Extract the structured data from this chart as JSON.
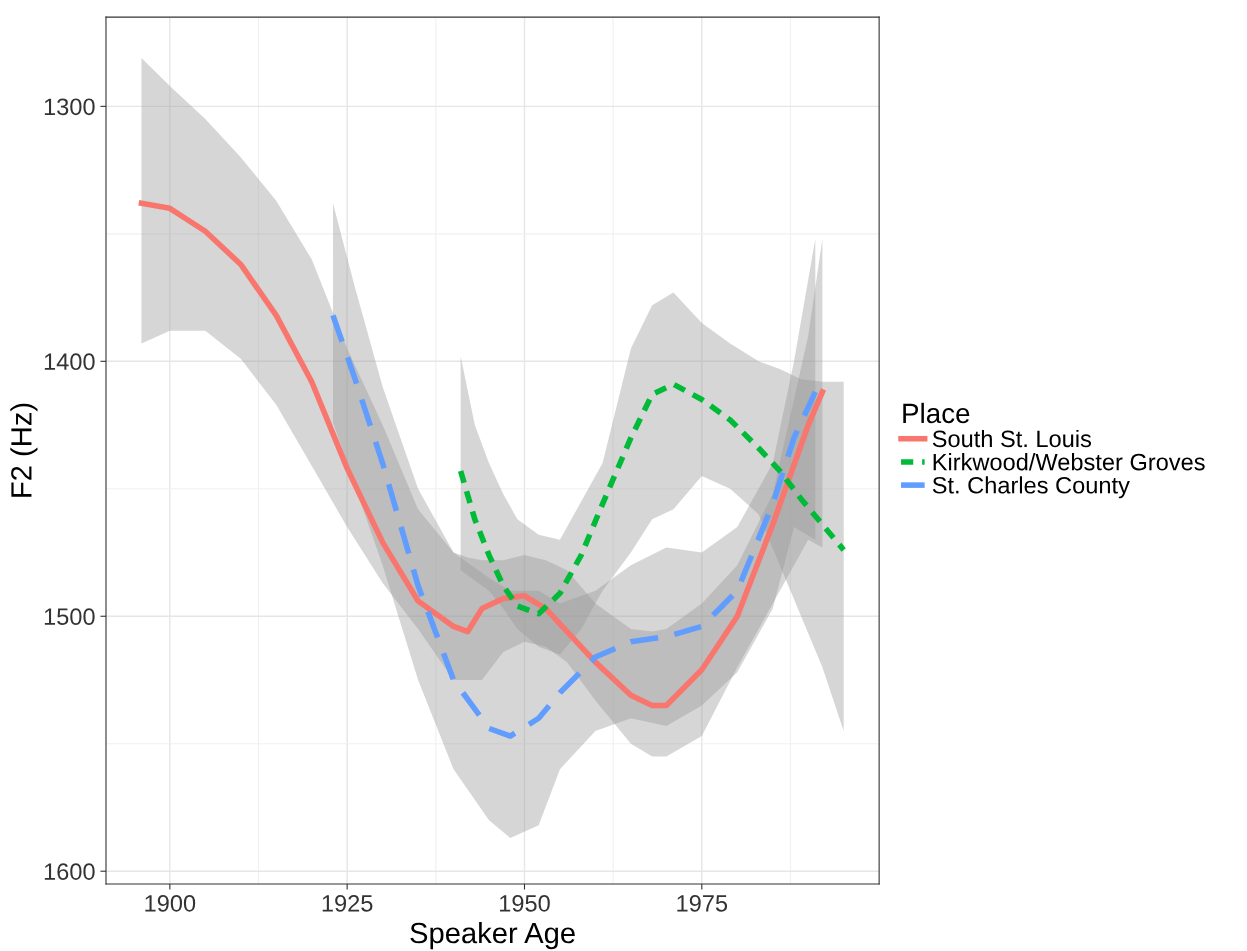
{
  "chart_data": {
    "type": "line",
    "xlabel": "Speaker Age",
    "ylabel": "F2 (Hz)",
    "legend_title": "Place",
    "xlim": [
      1891,
      2000
    ],
    "xticks": [
      1900,
      1925,
      1950,
      1975
    ],
    "ylim": [
      1605,
      1265
    ],
    "yticks": [
      1300,
      1400,
      1500,
      1600
    ],
    "grid": true,
    "legend": "right",
    "series": [
      {
        "name": "South St. Louis",
        "color": "#f8766d",
        "line_style": "solid",
        "x": [
          1896,
          1900,
          1905,
          1910,
          1915,
          1920,
          1925,
          1930,
          1935,
          1940,
          1942,
          1944,
          1947,
          1950,
          1953,
          1956,
          1960,
          1965,
          1968,
          1970,
          1975,
          1980,
          1985,
          1990,
          1992
        ],
        "values": [
          1338,
          1340,
          1349,
          1362,
          1382,
          1408,
          1442,
          1471,
          1494,
          1504,
          1506,
          1497,
          1493,
          1492,
          1497,
          1506,
          1518,
          1531,
          1535,
          1535,
          1521,
          1500,
          1464,
          1425,
          1412
        ],
        "lower": [
          1281,
          1292,
          1305,
          1320,
          1337,
          1360,
          1395,
          1425,
          1458,
          1475,
          1477,
          1478,
          1478,
          1476,
          1478,
          1482,
          1495,
          1505,
          1506,
          1505,
          1495,
          1480,
          1452,
          1390,
          1352
        ],
        "upper": [
          1393,
          1388,
          1388,
          1399,
          1417,
          1441,
          1465,
          1487,
          1505,
          1525,
          1525,
          1525,
          1514,
          1510,
          1512,
          1518,
          1533,
          1550,
          1555,
          1555,
          1547,
          1520,
          1495,
          1470,
          1473
        ]
      },
      {
        "name": "Kirkwood/Webster Groves",
        "color": "#00ba38",
        "line_style": "dotted",
        "x": [
          1941,
          1943,
          1945,
          1947,
          1949,
          1952,
          1955,
          1958,
          1961,
          1965,
          1968,
          1971,
          1975,
          1979,
          1983,
          1986,
          1989,
          1992,
          1995
        ],
        "values": [
          1443,
          1462,
          1476,
          1488,
          1496,
          1499,
          1491,
          1476,
          1456,
          1430,
          1413,
          1409,
          1415,
          1423,
          1434,
          1443,
          1454,
          1464,
          1474
        ],
        "lower": [
          1398,
          1425,
          1440,
          1452,
          1462,
          1468,
          1470,
          1455,
          1440,
          1395,
          1378,
          1373,
          1385,
          1393,
          1400,
          1403,
          1407,
          1408,
          1408
        ],
        "upper": [
          1482,
          1486,
          1490,
          1497,
          1505,
          1512,
          1515,
          1505,
          1490,
          1475,
          1462,
          1458,
          1445,
          1450,
          1460,
          1480,
          1500,
          1520,
          1545
        ]
      },
      {
        "name": "St. Charles County",
        "color": "#619cff",
        "line_style": "dashed",
        "x": [
          1923,
          1926,
          1930,
          1935,
          1940,
          1945,
          1948,
          1952,
          1955,
          1960,
          1965,
          1970,
          1975,
          1980,
          1985,
          1988,
          1991
        ],
        "values": [
          1382,
          1406,
          1440,
          1488,
          1525,
          1544,
          1547,
          1540,
          1530,
          1516,
          1510,
          1508,
          1504,
          1490,
          1456,
          1430,
          1412
        ],
        "lower": [
          1338,
          1370,
          1410,
          1450,
          1475,
          1485,
          1490,
          1490,
          1495,
          1490,
          1480,
          1473,
          1475,
          1465,
          1440,
          1400,
          1352
        ],
        "upper": [
          1424,
          1448,
          1480,
          1525,
          1560,
          1580,
          1587,
          1582,
          1560,
          1545,
          1540,
          1543,
          1535,
          1522,
          1497,
          1465,
          1470
        ]
      }
    ]
  }
}
